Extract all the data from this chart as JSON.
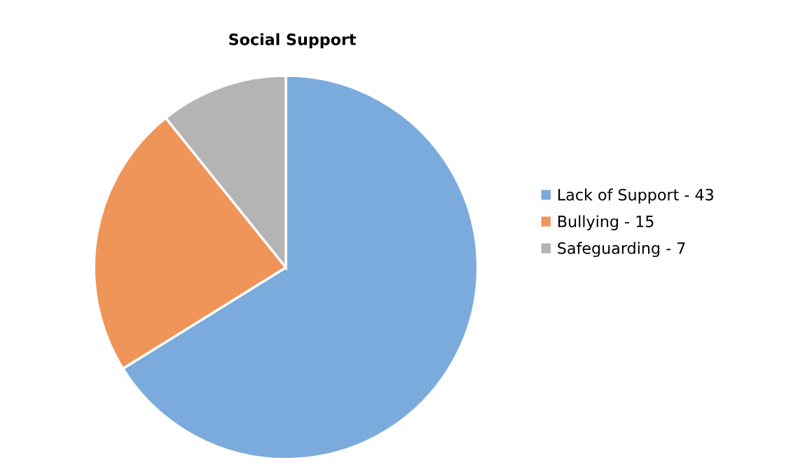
{
  "chart_data": {
    "type": "pie",
    "title": "Social Support",
    "categories": [
      "Lack of Support - 43",
      "Bullying - 15",
      "Safeguarding - 7"
    ],
    "values": [
      66.15,
      23.08,
      10.77
    ],
    "colors": [
      "#7aabdc",
      "#f0955a",
      "#b4b4b4"
    ],
    "legend": "right"
  }
}
